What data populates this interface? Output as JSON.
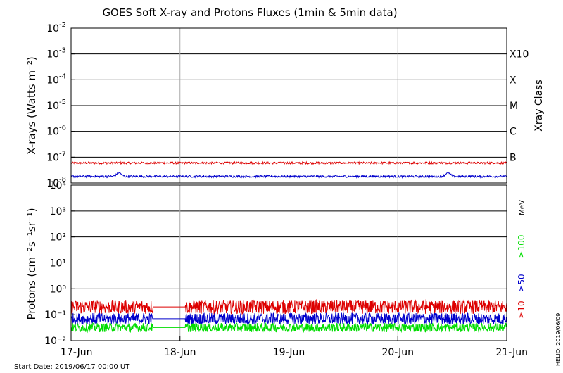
{
  "chart_data": [
    {
      "panel": "xrays",
      "type": "line",
      "title": "GOES Soft X-ray and Protons Fluxes   (1min & 5min data)",
      "ylabel": "X-rays (Watts m⁻²)",
      "yscale": "log",
      "ylim": [
        1e-08,
        0.01
      ],
      "ytick_labels": [
        {
          "base": "10",
          "exp": "-8"
        },
        {
          "base": "10",
          "exp": "-7"
        },
        {
          "base": "10",
          "exp": "-6"
        },
        {
          "base": "10",
          "exp": "-5"
        },
        {
          "base": "10",
          "exp": "-4"
        },
        {
          "base": "10",
          "exp": "-3"
        },
        {
          "base": "10",
          "exp": "-2"
        }
      ],
      "gridlines_solid": [
        1e-07,
        1e-06,
        1e-05,
        0.0001,
        0.001
      ],
      "right_axis_title": "Xray Class",
      "class_labels": [
        "B",
        "C",
        "M",
        "X",
        "X10"
      ],
      "xlim_days": [
        0,
        4
      ],
      "series": [
        {
          "channel": "long",
          "color": "#dd0000",
          "base": 6e-08,
          "bumps": [],
          "gap": [
            1.0,
            1.05
          ]
        },
        {
          "channel": "short",
          "color": "#0000cc",
          "base": 1.8e-08,
          "bumps": [
            {
              "day": 0.44,
              "peak": 2.5e-08
            },
            {
              "day": 3.46,
              "peak": 2.5e-08
            }
          ],
          "gap": [
            0.55,
            1.0
          ]
        }
      ]
    },
    {
      "panel": "protons",
      "type": "line",
      "ylabel": "Protons (cm⁻²s⁻¹sr⁻¹)",
      "yscale": "log",
      "ylim": [
        0.01,
        10000
      ],
      "ytick_labels": [
        "10⁻²",
        "10⁻¹",
        "10⁰",
        "10¹",
        "10²",
        "10³",
        "10⁴"
      ],
      "gridlines_solid": [
        1,
        100,
        1000
      ],
      "gridlines_dashed": [
        10
      ],
      "energy_unit": "MeV",
      "xlim_days": [
        0,
        4
      ],
      "xtick_labels": [
        "17-Jun",
        "18-Jun",
        "19-Jun",
        "20-Jun",
        "21-Jun"
      ],
      "series": [
        {
          "label": "≥10",
          "color": "#dd0000",
          "base": 0.2,
          "spread": 0.55,
          "gap": [
            0.75,
            1.05
          ]
        },
        {
          "label": "≥50",
          "color": "#0000cc",
          "base": 0.07,
          "spread": 0.45,
          "gap": [
            0.75,
            1.05
          ]
        },
        {
          "label": "≥100",
          "color": "#00dd00",
          "base": 0.032,
          "spread": 0.35,
          "gap": [
            0.75,
            1.05
          ]
        }
      ]
    }
  ],
  "footer": {
    "start_date": "Start Date: 2019/06/17 00:00 UT",
    "credit": "HELIO: 2019/06/09"
  }
}
